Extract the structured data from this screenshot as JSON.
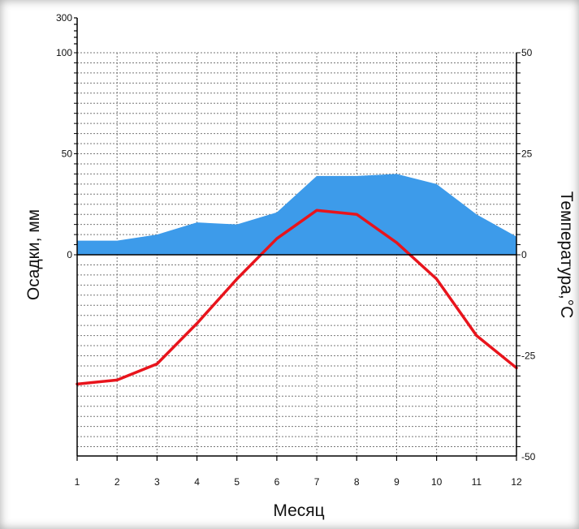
{
  "chart_data": {
    "type": "climatogram",
    "xlabel": "Месяц",
    "ylabel_left": "Осадки, мм",
    "ylabel_right": "Температура,°С",
    "categories": [
      "1",
      "2",
      "3",
      "4",
      "5",
      "6",
      "7",
      "8",
      "9",
      "10",
      "11",
      "12"
    ],
    "x": [
      1,
      2,
      3,
      4,
      5,
      6,
      7,
      8,
      9,
      10,
      11,
      12
    ],
    "precip_ticks": [
      "300",
      "100",
      "50",
      "0"
    ],
    "temp_ticks": [
      "50",
      "25",
      "0",
      "-25",
      "-50"
    ],
    "precip_ylim": [
      0,
      100
    ],
    "temp_ylim": [
      -50,
      50
    ],
    "grid": true,
    "series": [
      {
        "kind": "area",
        "values": [
          7,
          7,
          10,
          16,
          15,
          21,
          39,
          39,
          40,
          35,
          20,
          9
        ],
        "color": "#3d9bea"
      },
      {
        "kind": "line",
        "values": [
          -32,
          -31,
          -27,
          -17,
          -6,
          4,
          11,
          10,
          3,
          -6,
          -20,
          -28
        ],
        "color": "#e8141c"
      }
    ]
  }
}
